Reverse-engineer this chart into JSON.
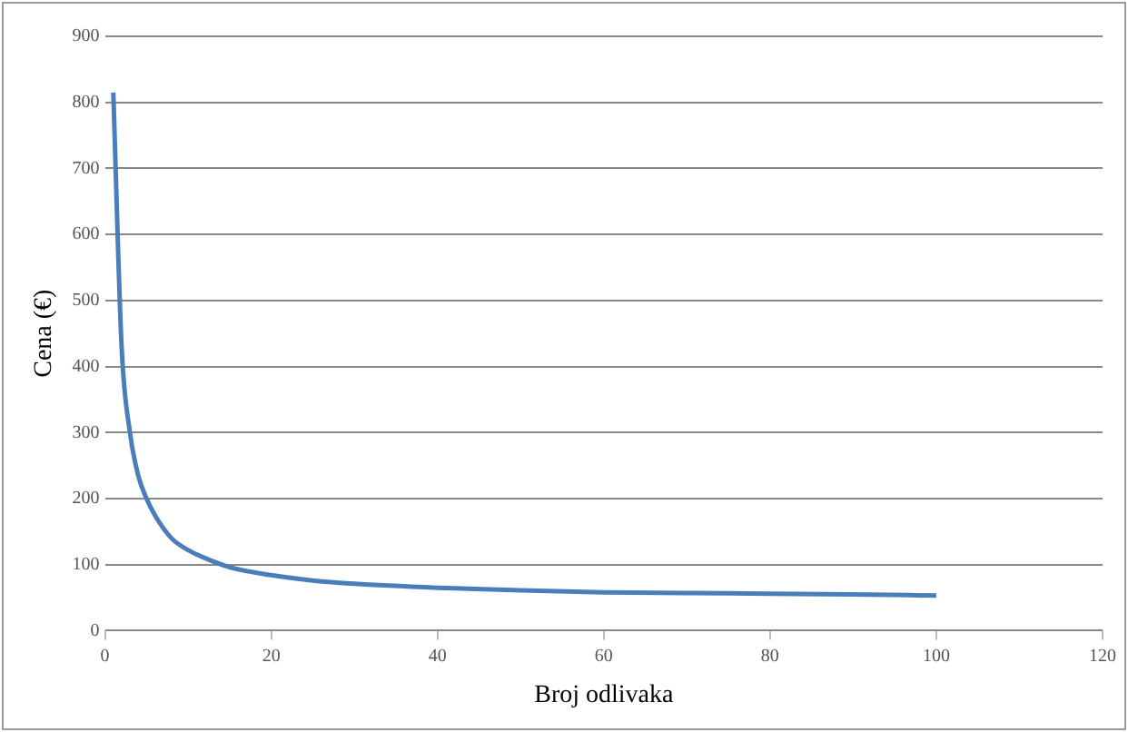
{
  "chart_data": {
    "type": "line",
    "xlabel": "Broj odlivaka",
    "ylabel": "Cena (€)",
    "x": [
      1,
      2,
      3,
      4,
      5,
      6,
      8,
      10,
      12,
      15,
      20,
      25,
      30,
      40,
      50,
      60,
      70,
      80,
      90,
      100
    ],
    "series": [
      {
        "color": "#4a7ebb",
        "values": [
          815,
          430,
          300,
          235,
          200,
          175,
          140,
          122,
          110,
          96,
          84,
          76,
          71,
          65,
          61,
          58,
          57,
          56,
          55,
          53
        ]
      }
    ],
    "xlim": [
      0,
      120
    ],
    "xticks": [
      0,
      20,
      40,
      60,
      80,
      100,
      120
    ],
    "ylim": [
      0,
      900
    ],
    "yticks": [
      0,
      100,
      200,
      300,
      400,
      500,
      600,
      700,
      800,
      900
    ],
    "grid": "y",
    "legend": false,
    "marker": "none",
    "line_style": "solid"
  }
}
